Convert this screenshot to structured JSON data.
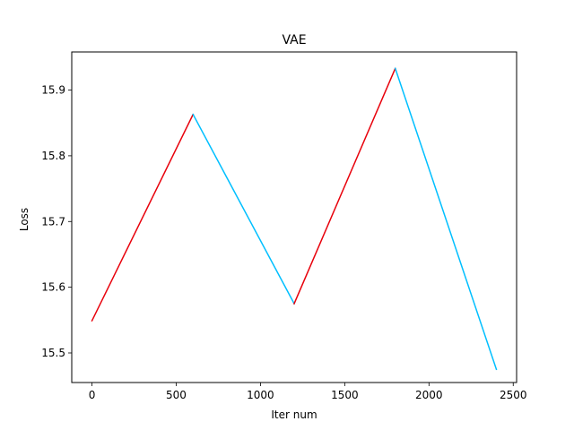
{
  "chart_data": {
    "type": "line",
    "title": "VAE",
    "xlabel": "Iter num",
    "ylabel": "Loss",
    "xlim": [
      -120,
      2520
    ],
    "ylim": [
      15.455,
      15.958
    ],
    "xticks": [
      0,
      500,
      1000,
      1500,
      2000,
      2500
    ],
    "yticks": [
      15.5,
      15.6,
      15.7,
      15.8,
      15.9
    ],
    "ytick_labels": [
      "15.5",
      "15.6",
      "15.7",
      "15.8",
      "15.9"
    ],
    "grid": false,
    "segments": [
      {
        "x": [
          0,
          600
        ],
        "y": [
          15.549,
          15.863
        ],
        "color": "#e8000b"
      },
      {
        "x": [
          600,
          1200
        ],
        "y": [
          15.863,
          15.575
        ],
        "color": "#00bfff"
      },
      {
        "x": [
          1200,
          1800
        ],
        "y": [
          15.575,
          15.933
        ],
        "color": "#e8000b"
      },
      {
        "x": [
          1800,
          2400
        ],
        "y": [
          15.933,
          15.475
        ],
        "color": "#00bfff"
      }
    ]
  }
}
